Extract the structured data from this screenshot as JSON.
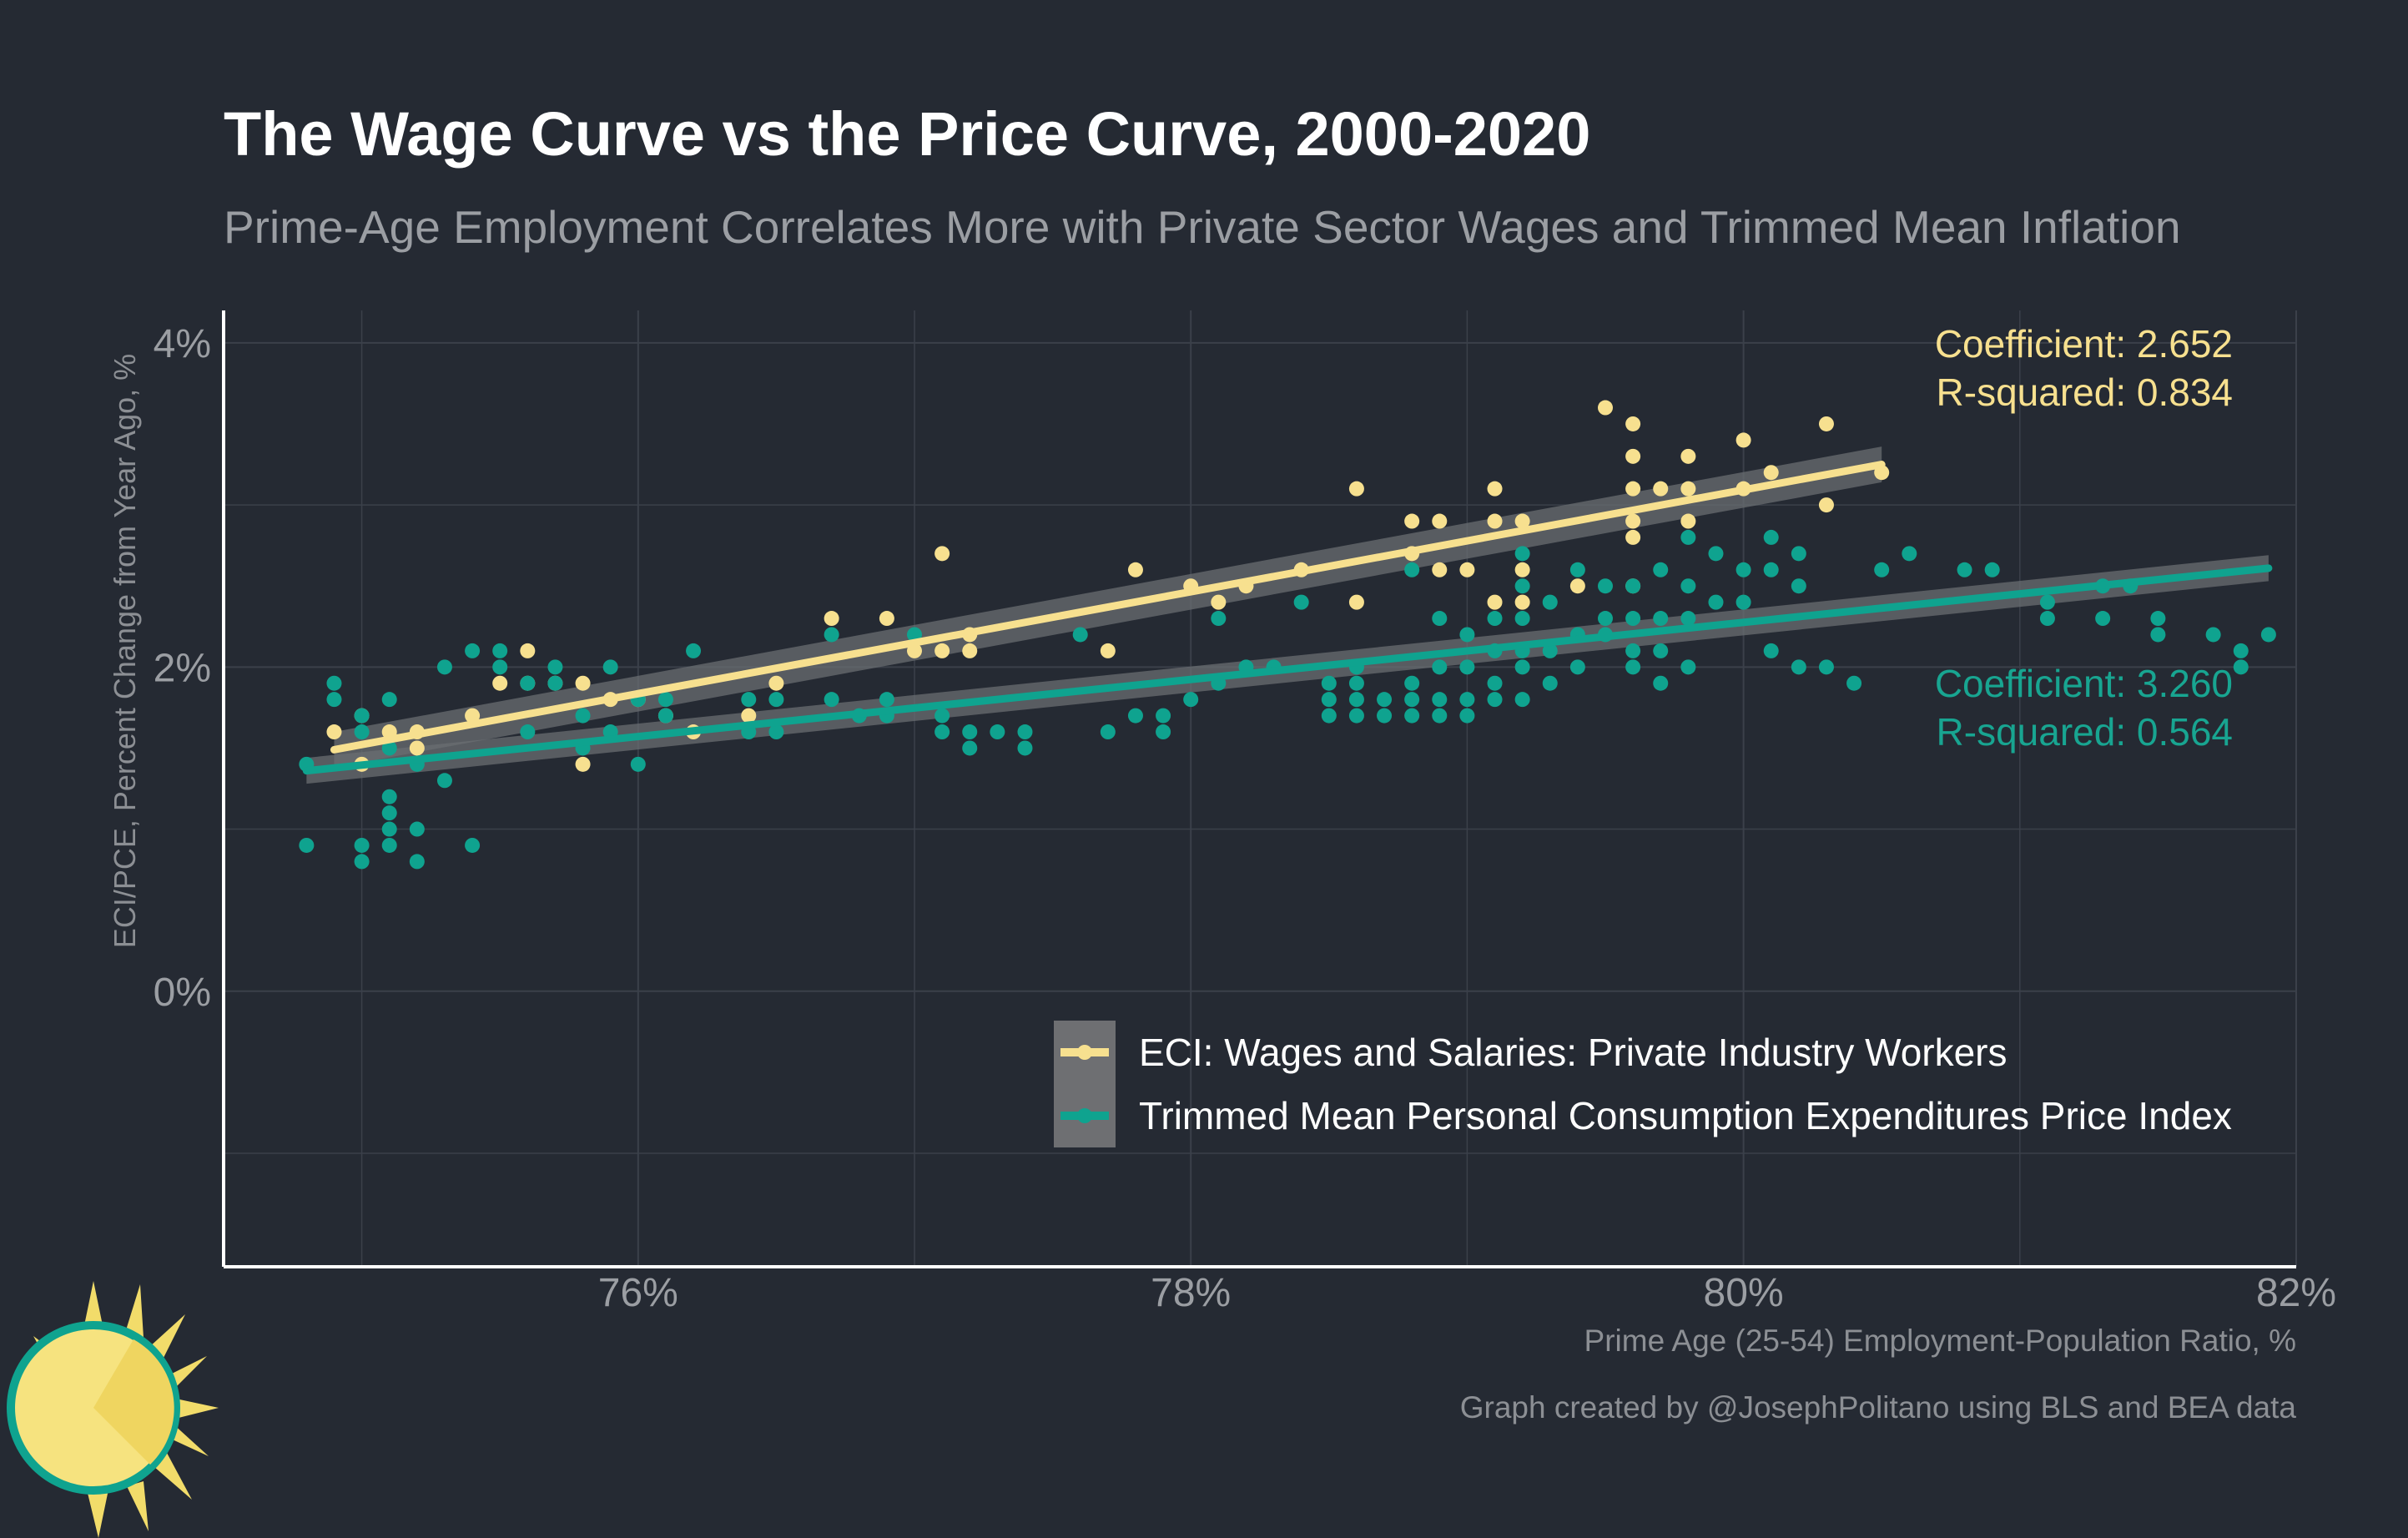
{
  "header": {
    "title": "The Wage Curve vs the Price Curve, 2000-2020",
    "subtitle": "Prime-Age Employment Correlates More with Private Sector Wages and Trimmed Mean Inflation"
  },
  "footer": {
    "caption": "Graph created by @JosephPolitano using BLS and BEA data"
  },
  "annotations": {
    "wage_coef": "Coefficient: 2.652",
    "wage_r2": "R-squared: 0.834",
    "price_coef": "Coefficient: 3.260",
    "price_r2": "R-squared: 0.564"
  },
  "colors": {
    "background": "#252a33",
    "wages": "#f7e08f",
    "prices": "#0fa38f",
    "grid": "#3b404a",
    "axis": "#ffffff",
    "tick_text": "#9b9ea3"
  },
  "chart_data": {
    "type": "scatter",
    "title": "The Wage Curve vs the Price Curve, 2000-2020",
    "subtitle": "Prime-Age Employment Correlates More with Private Sector Wages and Trimmed Mean Inflation",
    "xlabel": "Prime Age (25-54) Employment-Population Ratio, %",
    "ylabel": "ECI/PCE, Percent Change from Year Ago, %",
    "xlim": [
      74.5,
      82
    ],
    "ylim": [
      -1.7,
      4.2
    ],
    "x_ticks": [
      76,
      78,
      80,
      82
    ],
    "x_tick_labels": [
      "76%",
      "78%",
      "80%",
      "82%"
    ],
    "y_ticks": [
      0,
      2,
      4
    ],
    "y_tick_labels": [
      "0%",
      "2%",
      "4%"
    ],
    "grid": true,
    "legend_position": "bottom-right",
    "series": [
      {
        "name": "ECI: Wages and Salaries: Private Industry Workers",
        "color": "#f7e08f",
        "points": [
          [
            74.9,
            1.6
          ],
          [
            75.0,
            1.7
          ],
          [
            75.0,
            1.4
          ],
          [
            75.1,
            1.6
          ],
          [
            75.2,
            1.5
          ],
          [
            75.2,
            1.6
          ],
          [
            75.4,
            1.7
          ],
          [
            75.5,
            1.9
          ],
          [
            75.6,
            2.1
          ],
          [
            75.6,
            1.9
          ],
          [
            75.7,
            1.9
          ],
          [
            75.8,
            1.9
          ],
          [
            75.8,
            1.4
          ],
          [
            75.9,
            1.8
          ],
          [
            76.0,
            1.8
          ],
          [
            76.1,
            1.7
          ],
          [
            76.2,
            1.6
          ],
          [
            76.4,
            1.7
          ],
          [
            76.5,
            1.9
          ],
          [
            76.7,
            2.3
          ],
          [
            76.9,
            2.3
          ],
          [
            77.0,
            2.1
          ],
          [
            77.1,
            2.7
          ],
          [
            77.1,
            2.1
          ],
          [
            77.2,
            2.2
          ],
          [
            77.2,
            2.1
          ],
          [
            77.7,
            2.1
          ],
          [
            77.8,
            2.6
          ],
          [
            78.0,
            2.5
          ],
          [
            78.1,
            2.4
          ],
          [
            78.2,
            2.5
          ],
          [
            78.4,
            2.6
          ],
          [
            78.6,
            3.1
          ],
          [
            78.6,
            2.4
          ],
          [
            78.8,
            2.9
          ],
          [
            78.8,
            2.7
          ],
          [
            78.9,
            2.9
          ],
          [
            78.9,
            2.6
          ],
          [
            79.0,
            2.6
          ],
          [
            79.1,
            3.1
          ],
          [
            79.1,
            2.9
          ],
          [
            79.1,
            2.4
          ],
          [
            79.2,
            2.9
          ],
          [
            79.2,
            2.6
          ],
          [
            79.2,
            2.4
          ],
          [
            79.4,
            2.5
          ],
          [
            79.5,
            3.6
          ],
          [
            79.6,
            3.5
          ],
          [
            79.6,
            3.3
          ],
          [
            79.6,
            3.1
          ],
          [
            79.6,
            2.9
          ],
          [
            79.6,
            2.8
          ],
          [
            79.6,
            2.5
          ],
          [
            79.7,
            3.1
          ],
          [
            79.8,
            3.3
          ],
          [
            79.8,
            3.1
          ],
          [
            79.8,
            2.9
          ],
          [
            80.0,
            3.4
          ],
          [
            80.0,
            3.1
          ],
          [
            80.1,
            3.2
          ],
          [
            80.3,
            3.5
          ],
          [
            80.3,
            3.0
          ],
          [
            80.5,
            3.2
          ]
        ],
        "fit": {
          "x": [
            74.9,
            80.5
          ],
          "y": [
            1.49,
            3.25
          ],
          "coefficient": 2.652,
          "r_squared": 0.834
        }
      },
      {
        "name": "Trimmed Mean Personal Consumption Expenditures Price Index",
        "color": "#0fa38f",
        "points": [
          [
            74.8,
            1.4
          ],
          [
            74.8,
            0.9
          ],
          [
            74.9,
            1.9
          ],
          [
            74.9,
            1.8
          ],
          [
            75.0,
            1.7
          ],
          [
            75.0,
            1.6
          ],
          [
            75.0,
            0.9
          ],
          [
            75.0,
            0.8
          ],
          [
            75.1,
            1.8
          ],
          [
            75.1,
            1.5
          ],
          [
            75.1,
            1.2
          ],
          [
            75.1,
            1.1
          ],
          [
            75.1,
            1.0
          ],
          [
            75.1,
            0.9
          ],
          [
            75.2,
            1.4
          ],
          [
            75.2,
            1.0
          ],
          [
            75.2,
            0.8
          ],
          [
            75.3,
            2.0
          ],
          [
            75.3,
            1.3
          ],
          [
            75.4,
            2.1
          ],
          [
            75.4,
            0.9
          ],
          [
            75.5,
            2.1
          ],
          [
            75.5,
            2.0
          ],
          [
            75.6,
            1.9
          ],
          [
            75.6,
            1.6
          ],
          [
            75.7,
            2.0
          ],
          [
            75.7,
            1.9
          ],
          [
            75.8,
            1.7
          ],
          [
            75.8,
            1.5
          ],
          [
            75.9,
            2.0
          ],
          [
            75.9,
            1.6
          ],
          [
            76.0,
            1.8
          ],
          [
            76.0,
            1.4
          ],
          [
            76.1,
            1.8
          ],
          [
            76.1,
            1.7
          ],
          [
            76.2,
            2.1
          ],
          [
            76.4,
            1.8
          ],
          [
            76.4,
            1.6
          ],
          [
            76.5,
            1.8
          ],
          [
            76.5,
            1.6
          ],
          [
            76.7,
            1.8
          ],
          [
            76.7,
            2.2
          ],
          [
            76.8,
            1.7
          ],
          [
            76.9,
            1.8
          ],
          [
            76.9,
            1.7
          ],
          [
            77.0,
            2.2
          ],
          [
            77.1,
            1.7
          ],
          [
            77.1,
            1.6
          ],
          [
            77.2,
            1.6
          ],
          [
            77.2,
            1.5
          ],
          [
            77.3,
            1.6
          ],
          [
            77.4,
            1.6
          ],
          [
            77.4,
            1.5
          ],
          [
            77.6,
            2.2
          ],
          [
            77.7,
            1.6
          ],
          [
            77.8,
            1.7
          ],
          [
            77.9,
            1.7
          ],
          [
            77.9,
            1.6
          ],
          [
            78.0,
            1.8
          ],
          [
            78.1,
            2.3
          ],
          [
            78.1,
            1.9
          ],
          [
            78.2,
            2.0
          ],
          [
            78.3,
            2.0
          ],
          [
            78.4,
            2.4
          ],
          [
            78.5,
            1.9
          ],
          [
            78.5,
            1.8
          ],
          [
            78.5,
            1.7
          ],
          [
            78.6,
            2.0
          ],
          [
            78.6,
            1.9
          ],
          [
            78.6,
            1.8
          ],
          [
            78.6,
            1.7
          ],
          [
            78.7,
            1.8
          ],
          [
            78.7,
            1.7
          ],
          [
            78.8,
            2.6
          ],
          [
            78.8,
            1.9
          ],
          [
            78.8,
            1.8
          ],
          [
            78.8,
            1.7
          ],
          [
            78.9,
            2.3
          ],
          [
            78.9,
            2.0
          ],
          [
            78.9,
            1.8
          ],
          [
            78.9,
            1.7
          ],
          [
            79.0,
            2.2
          ],
          [
            79.0,
            2.0
          ],
          [
            79.0,
            1.8
          ],
          [
            79.0,
            1.7
          ],
          [
            79.1,
            2.3
          ],
          [
            79.1,
            2.1
          ],
          [
            79.1,
            1.9
          ],
          [
            79.1,
            1.8
          ],
          [
            79.2,
            2.7
          ],
          [
            79.2,
            2.5
          ],
          [
            79.2,
            2.3
          ],
          [
            79.2,
            2.1
          ],
          [
            79.2,
            2.0
          ],
          [
            79.2,
            1.8
          ],
          [
            79.3,
            2.4
          ],
          [
            79.3,
            2.1
          ],
          [
            79.3,
            1.9
          ],
          [
            79.4,
            2.6
          ],
          [
            79.4,
            2.2
          ],
          [
            79.4,
            2.0
          ],
          [
            79.5,
            2.5
          ],
          [
            79.5,
            2.3
          ],
          [
            79.5,
            2.2
          ],
          [
            79.6,
            2.5
          ],
          [
            79.6,
            2.3
          ],
          [
            79.6,
            2.1
          ],
          [
            79.6,
            2.0
          ],
          [
            79.7,
            2.6
          ],
          [
            79.7,
            2.3
          ],
          [
            79.7,
            2.1
          ],
          [
            79.7,
            1.9
          ],
          [
            79.8,
            2.8
          ],
          [
            79.8,
            2.5
          ],
          [
            79.8,
            2.3
          ],
          [
            79.8,
            2.0
          ],
          [
            79.9,
            2.7
          ],
          [
            79.9,
            2.4
          ],
          [
            80.0,
            2.6
          ],
          [
            80.0,
            2.4
          ],
          [
            80.1,
            2.8
          ],
          [
            80.1,
            2.6
          ],
          [
            80.1,
            2.1
          ],
          [
            80.2,
            2.7
          ],
          [
            80.2,
            2.5
          ],
          [
            80.2,
            2.0
          ],
          [
            80.3,
            2.0
          ],
          [
            80.4,
            1.9
          ],
          [
            80.5,
            2.6
          ],
          [
            80.6,
            2.7
          ],
          [
            80.8,
            2.6
          ],
          [
            80.9,
            2.6
          ],
          [
            81.1,
            2.4
          ],
          [
            81.1,
            2.3
          ],
          [
            81.3,
            2.5
          ],
          [
            81.3,
            2.3
          ],
          [
            81.4,
            2.5
          ],
          [
            81.5,
            2.3
          ],
          [
            81.5,
            2.2
          ],
          [
            81.7,
            2.2
          ],
          [
            81.8,
            2.1
          ],
          [
            81.8,
            2.0
          ],
          [
            81.9,
            2.2
          ]
        ],
        "fit": {
          "x": [
            74.8,
            81.9
          ],
          "y": [
            1.36,
            2.61
          ],
          "coefficient": 3.26,
          "r_squared": 0.564
        }
      }
    ]
  }
}
